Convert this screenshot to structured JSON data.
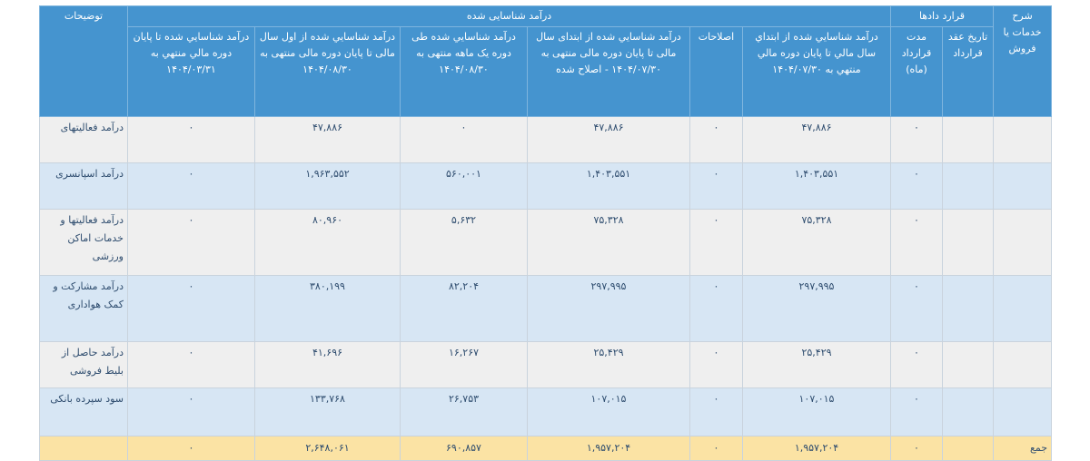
{
  "header": {
    "desc": "شرح خدمات یا فروش",
    "contracts": "قرارد دادها",
    "contract_date": "تاریخ عقد قرارداد",
    "duration": "مدت قرارداد (ماه)",
    "recognized": "درآمد شناسایی شده",
    "rec_to_0730": "درآمد شناسایي شده از ابتداي سال مالي تا پايان دوره مالي منتهي به ۱۴۰۴/۰۷/۳۰",
    "adjustments": "اصلاحات",
    "adjusted": "درآمد شناسایي شده از ابتدای سال مالی تا پایان دوره مالی منتهی به ۱۴۰۴/۰۷/۳۰ - اصلاح شده",
    "one_month": "درآمد شناسایي شده طی دوره یک ماهه منتهی به ۱۴۰۴/۰۸/۳۰",
    "ytd_0830": "درآمد شناسایي شده از اول سال مالی تا پایان دوره مالی منتهی به ۱۴۰۴/۰۸/۳۰",
    "to_0331": "درآمد شناسایي شده تا پایان دوره مالي منتهي به ۱۴۰۴/۰۳/۳۱",
    "notes": "توضیحات"
  },
  "rows": [
    [
      "",
      "",
      "۰",
      "۴۷,۸۸۶",
      "۰",
      "۴۷,۸۸۶",
      "۰",
      "۴۷,۸۸۶",
      "۰",
      "درآمد فعالیتهای"
    ],
    [
      "",
      "",
      "۰",
      "۱,۴۰۳,۵۵۱",
      "۰",
      "۱,۴۰۳,۵۵۱",
      "۵۶۰,۰۰۱",
      "۱,۹۶۳,۵۵۲",
      "۰",
      "درآمد اسپانسری"
    ],
    [
      "",
      "",
      "۰",
      "۷۵,۳۲۸",
      "۰",
      "۷۵,۳۲۸",
      "۵,۶۳۲",
      "۸۰,۹۶۰",
      "۰",
      "درآمد فعالیتها و خدمات اماکن ورزشی"
    ],
    [
      "",
      "",
      "۰",
      "۲۹۷,۹۹۵",
      "۰",
      "۲۹۷,۹۹۵",
      "۸۲,۲۰۴",
      "۳۸۰,۱۹۹",
      "۰",
      "درآمد مشارکت و کمک هواداری"
    ],
    [
      "",
      "",
      "۰",
      "۲۵,۴۲۹",
      "۰",
      "۲۵,۴۲۹",
      "۱۶,۲۶۷",
      "۴۱,۶۹۶",
      "۰",
      "درآمد حاصل از بلیط فروشی"
    ],
    [
      "",
      "",
      "۰",
      "۱۰۷,۰۱۵",
      "۰",
      "۱۰۷,۰۱۵",
      "۲۶,۷۵۳",
      "۱۳۳,۷۶۸",
      "۰",
      "سود سپرده بانکی"
    ]
  ],
  "total": [
    "جمع",
    "",
    "۰",
    "۱,۹۵۷,۲۰۴",
    "۰",
    "۱,۹۵۷,۲۰۴",
    "۶۹۰,۸۵۷",
    "۲,۶۴۸,۰۶۱",
    "۰",
    ""
  ],
  "colors": {
    "header": "#4594cf",
    "row_gray": "#efefef",
    "row_blue": "#d7e6f4",
    "total": "#fbe3a4"
  }
}
